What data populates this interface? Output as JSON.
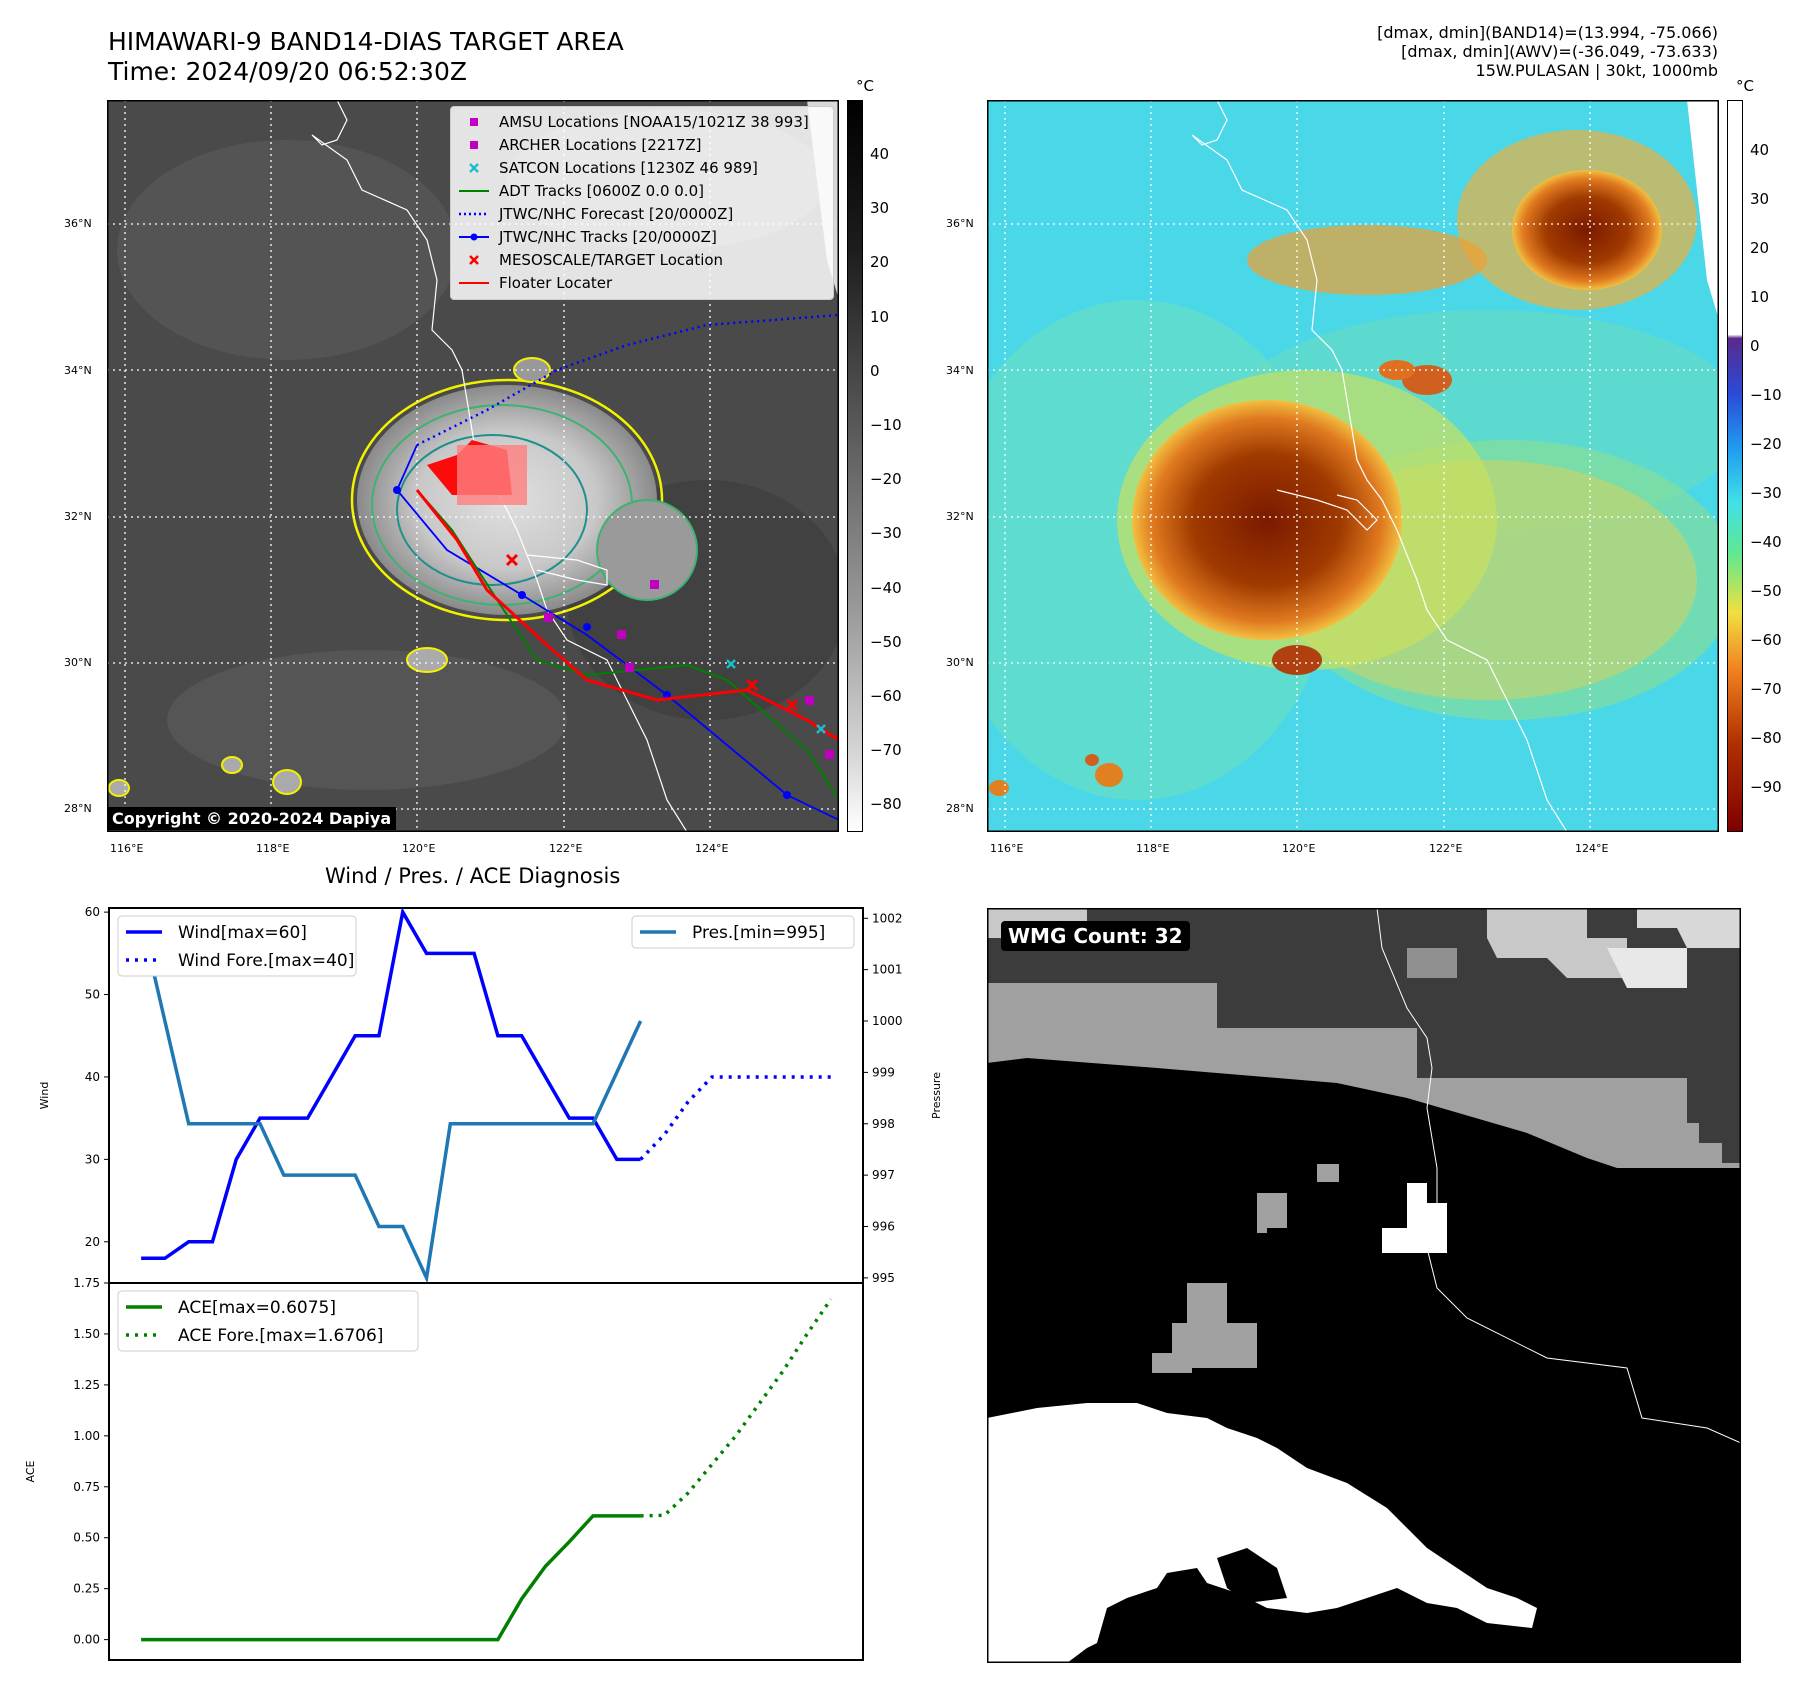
{
  "header": {
    "title_line1": "HIMAWARI-9 BAND14-DIAS TARGET AREA",
    "title_line2": "Time: 2024/09/20 06:52:30Z",
    "info_line1": "[dmax, dmin](BAND14)=(13.994, -75.066)",
    "info_line2": "[dmax, dmin](AWV)=(-36.049, -73.633)",
    "info_line3": "15W.PULASAN | 30kt, 1000mb"
  },
  "map": {
    "lat_labels": [
      "36°N",
      "34°N",
      "32°N",
      "30°N",
      "28°N"
    ],
    "lon_labels": [
      "116°E",
      "118°E",
      "120°E",
      "122°E",
      "124°E"
    ],
    "copyright": "Copyright © 2020-2024 Dapiya",
    "legend": [
      {
        "label": "AMSU Locations [NOAA15/1021Z 38 993]",
        "symbol": "square",
        "color": "#c000c0"
      },
      {
        "label": "ARCHER Locations [2217Z]",
        "symbol": "square",
        "color": "#c000c0"
      },
      {
        "label": "SATCON Locations [1230Z 46 989]",
        "symbol": "x",
        "color": "#17becf"
      },
      {
        "label": "ADT Tracks [0600Z 0.0 0.0]",
        "symbol": "line",
        "color": "#008000"
      },
      {
        "label": "JTWC/NHC Forecast [20/0000Z]",
        "symbol": "dotted",
        "color": "#0000ff"
      },
      {
        "label": "JTWC/NHC Tracks [20/0000Z]",
        "symbol": "line-dot",
        "color": "#0000ff"
      },
      {
        "label": "MESOSCALE/TARGET Location",
        "symbol": "x",
        "color": "#ff0000"
      },
      {
        "label": "Floater Locater",
        "symbol": "line",
        "color": "#ff0000"
      }
    ]
  },
  "colorbars": {
    "unit": "°C",
    "gray_ticks": [
      "40",
      "30",
      "20",
      "10",
      "0",
      "−10",
      "−20",
      "−30",
      "−40",
      "−50",
      "−60",
      "−70",
      "−80"
    ],
    "color_ticks": [
      "40",
      "30",
      "20",
      "10",
      "0",
      "−10",
      "−20",
      "−30",
      "−40",
      "−50",
      "−60",
      "−70",
      "−80",
      "−90"
    ]
  },
  "chart_data": [
    {
      "type": "line",
      "title": "Wind / Pres. / ACE Diagnosis",
      "ylabel": "Wind",
      "y2label": "Pressure",
      "ylim": [
        15,
        60.5
      ],
      "y2lim": [
        994.9,
        1002.2
      ],
      "yticks": [
        "60",
        "50",
        "40",
        "30",
        "20"
      ],
      "y2ticks": [
        "1002",
        "1001",
        "1000",
        "999",
        "998",
        "997",
        "996",
        "995"
      ],
      "x": [
        0,
        1,
        2,
        3,
        4,
        5,
        6,
        7,
        8,
        9,
        10,
        11,
        12,
        13,
        14,
        15,
        16,
        17,
        18,
        19,
        20,
        21,
        22,
        23,
        24,
        25,
        26,
        27,
        28,
        29
      ],
      "series": [
        {
          "name": "Wind[max=60]",
          "axis": "left",
          "style": "solid",
          "color": "#0000ff",
          "x": [
            0,
            1,
            2,
            3,
            4,
            5,
            6,
            7,
            8,
            9,
            10,
            11,
            12,
            13,
            14,
            15,
            16,
            17,
            18,
            19,
            20,
            21
          ],
          "values": [
            18,
            18,
            20,
            20,
            30,
            35,
            35,
            35,
            40,
            45,
            45,
            60,
            55,
            55,
            55,
            45,
            45,
            40,
            35,
            35,
            30,
            30
          ]
        },
        {
          "name": "Wind Fore.[max=40]",
          "axis": "left",
          "style": "dotted",
          "color": "#0000ff",
          "x": [
            21,
            22,
            23,
            24,
            25,
            26,
            27,
            28,
            29
          ],
          "values": [
            30,
            33,
            37,
            40,
            40,
            40,
            40,
            40,
            40
          ]
        },
        {
          "name": "Pres.[min=995]",
          "axis": "right",
          "style": "solid",
          "color": "#1f77b4",
          "x": [
            0,
            1,
            2,
            3,
            4,
            5,
            6,
            7,
            8,
            9,
            10,
            11,
            12,
            13,
            14,
            15,
            16,
            17,
            18,
            19,
            20,
            21
          ],
          "values": [
            1002,
            1000,
            998,
            998,
            998,
            998,
            997,
            997,
            997,
            997,
            996,
            996,
            995,
            998,
            998,
            998,
            998,
            998,
            998,
            998,
            999,
            1000
          ]
        }
      ]
    },
    {
      "type": "line",
      "ylabel": "ACE",
      "ylim": [
        -0.1,
        1.75
      ],
      "yticks": [
        "1.75",
        "1.50",
        "1.25",
        "1.00",
        "0.75",
        "0.50",
        "0.25",
        "0.00"
      ],
      "series": [
        {
          "name": "ACE[max=0.6075]",
          "style": "solid",
          "color": "#008000",
          "x": [
            0,
            1,
            2,
            3,
            4,
            5,
            6,
            7,
            8,
            9,
            10,
            11,
            12,
            13,
            14,
            15,
            16,
            17,
            18,
            19,
            20,
            21
          ],
          "values": [
            0,
            0,
            0,
            0,
            0,
            0,
            0,
            0,
            0,
            0,
            0,
            0,
            0,
            0,
            0,
            0,
            0.2,
            0.36,
            0.48,
            0.6075,
            0.6075,
            0.6075
          ]
        },
        {
          "name": "ACE Fore.[max=1.6706]",
          "style": "dotted",
          "color": "#008000",
          "x": [
            21,
            22,
            23,
            24,
            25,
            26,
            27,
            28,
            29
          ],
          "values": [
            0.6075,
            0.61,
            0.72,
            0.86,
            1.0,
            1.16,
            1.32,
            1.5,
            1.6706
          ]
        }
      ]
    }
  ],
  "wmg": {
    "label": "WMG Count: 32"
  }
}
